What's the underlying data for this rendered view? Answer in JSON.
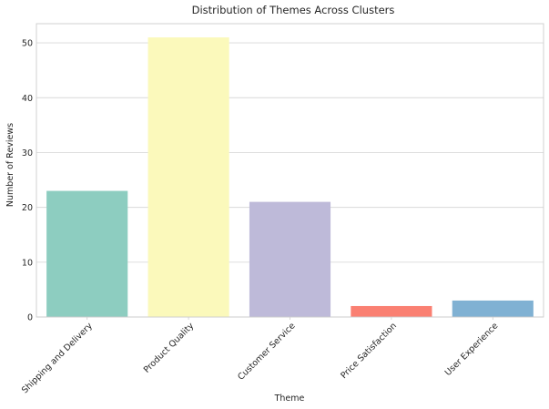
{
  "chart_data": {
    "type": "bar",
    "title": "Distribution of Themes Across Clusters",
    "xlabel": "Theme",
    "ylabel": "Number of Reviews",
    "categories": [
      "Shipping and Delivery",
      "Product Quality",
      "Customer Service",
      "Price Satisfaction",
      "User Experience"
    ],
    "values": [
      23,
      51,
      21,
      2,
      3
    ],
    "colors": [
      "#8dcdc0",
      "#fbf9bb",
      "#bebad9",
      "#fa8072",
      "#80b1d3"
    ],
    "ylim": [
      0,
      53.5
    ],
    "yticks": [
      0,
      10,
      20,
      30,
      40,
      50
    ],
    "grid": "horizontal",
    "legend": "none"
  }
}
